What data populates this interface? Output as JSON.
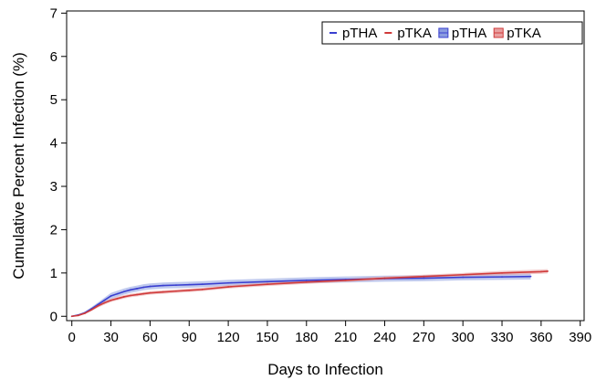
{
  "chart_data": {
    "type": "line",
    "title": "",
    "xlabel": "Days to Infection",
    "ylabel": "Cumulative Percent Infection (%)",
    "xlim": [
      -4,
      393
    ],
    "ylim": [
      -0.1,
      7.05
    ],
    "xticks": [
      0,
      30,
      60,
      90,
      120,
      150,
      180,
      210,
      240,
      270,
      300,
      330,
      360,
      390
    ],
    "yticks": [
      0,
      1,
      2,
      3,
      4,
      5,
      6,
      7
    ],
    "grid": false,
    "legend_position": "top-right",
    "series": [
      {
        "name": "pTHA",
        "color": "#3a3fd0",
        "band_color": "#8b9ce0",
        "x": [
          0,
          5,
          10,
          15,
          20,
          25,
          30,
          35,
          40,
          45,
          50,
          55,
          60,
          70,
          80,
          90,
          100,
          120,
          150,
          180,
          210,
          240,
          270,
          300,
          330,
          352
        ],
        "y": [
          0,
          0.03,
          0.08,
          0.17,
          0.27,
          0.37,
          0.47,
          0.52,
          0.57,
          0.61,
          0.64,
          0.67,
          0.69,
          0.71,
          0.72,
          0.73,
          0.74,
          0.77,
          0.8,
          0.83,
          0.85,
          0.87,
          0.88,
          0.9,
          0.91,
          0.92
        ],
        "lower": [
          0,
          0.01,
          0.05,
          0.13,
          0.22,
          0.31,
          0.4,
          0.45,
          0.5,
          0.54,
          0.57,
          0.6,
          0.62,
          0.64,
          0.65,
          0.66,
          0.67,
          0.7,
          0.73,
          0.76,
          0.78,
          0.8,
          0.81,
          0.83,
          0.84,
          0.85
        ],
        "upper": [
          0,
          0.05,
          0.11,
          0.21,
          0.32,
          0.43,
          0.54,
          0.59,
          0.64,
          0.68,
          0.71,
          0.74,
          0.76,
          0.78,
          0.79,
          0.8,
          0.81,
          0.84,
          0.87,
          0.9,
          0.92,
          0.94,
          0.95,
          0.97,
          0.98,
          0.99
        ]
      },
      {
        "name": "pTKA",
        "color": "#d03a3a",
        "band_color": "#e8a0a0",
        "x": [
          0,
          5,
          10,
          15,
          20,
          25,
          30,
          35,
          40,
          45,
          50,
          55,
          60,
          70,
          80,
          90,
          100,
          120,
          150,
          180,
          210,
          240,
          270,
          300,
          330,
          360,
          365
        ],
        "y": [
          0,
          0.02,
          0.07,
          0.15,
          0.24,
          0.31,
          0.37,
          0.41,
          0.45,
          0.48,
          0.5,
          0.52,
          0.54,
          0.56,
          0.58,
          0.6,
          0.62,
          0.68,
          0.74,
          0.79,
          0.83,
          0.88,
          0.92,
          0.96,
          1.0,
          1.03,
          1.04
        ],
        "lower": [
          0,
          0.01,
          0.05,
          0.12,
          0.2,
          0.27,
          0.33,
          0.37,
          0.41,
          0.44,
          0.46,
          0.48,
          0.5,
          0.52,
          0.54,
          0.56,
          0.58,
          0.64,
          0.7,
          0.75,
          0.79,
          0.84,
          0.88,
          0.92,
          0.95,
          0.98,
          0.99
        ],
        "upper": [
          0,
          0.03,
          0.09,
          0.18,
          0.28,
          0.35,
          0.41,
          0.45,
          0.49,
          0.52,
          0.54,
          0.56,
          0.58,
          0.6,
          0.62,
          0.64,
          0.66,
          0.72,
          0.78,
          0.83,
          0.87,
          0.92,
          0.96,
          1.0,
          1.05,
          1.08,
          1.09
        ]
      }
    ],
    "legend": [
      {
        "label": "pTHA",
        "kind": "line",
        "color": "#3a3fd0"
      },
      {
        "label": "pTKA",
        "kind": "line",
        "color": "#d03a3a"
      },
      {
        "label": "pTHA",
        "kind": "band",
        "color": "#8b9ce0",
        "edge": "#3a3fd0"
      },
      {
        "label": "pTKA",
        "kind": "band",
        "color": "#e8a0a0",
        "edge": "#d03a3a"
      }
    ]
  }
}
